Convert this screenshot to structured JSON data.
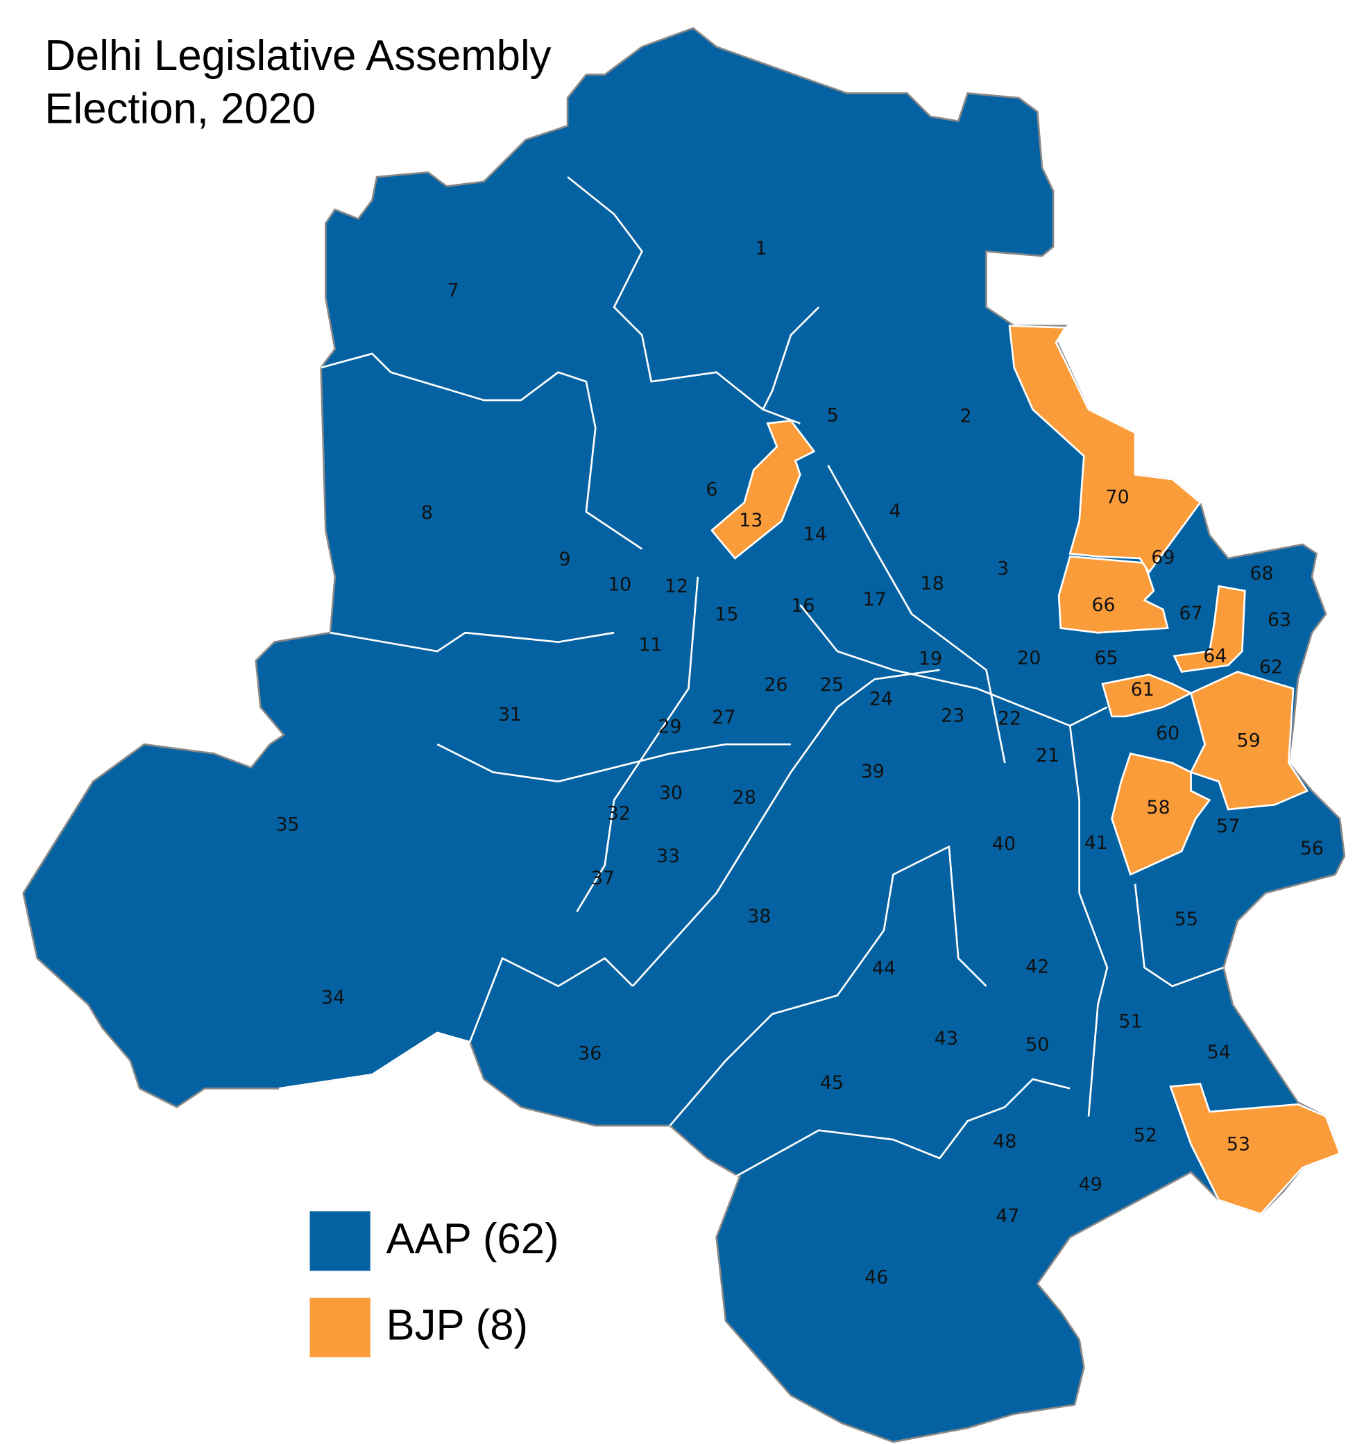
{
  "title": [
    "Delhi Legislative Assembly",
    "Election, 2020"
  ],
  "parties": [
    {
      "name": "AAP  (62)",
      "color": "#0462a2"
    },
    {
      "name": "BJP (8)",
      "color": "#fb9c3a"
    }
  ],
  "constituencies": [
    {
      "label": "1",
      "party": 0
    },
    {
      "label": "2",
      "party": 0
    },
    {
      "label": "3",
      "party": 0
    },
    {
      "label": "4",
      "party": 0
    },
    {
      "label": "5",
      "party": 0
    },
    {
      "label": "6",
      "party": 0
    },
    {
      "label": "7",
      "party": 0
    },
    {
      "label": "8",
      "party": 0
    },
    {
      "label": "9",
      "party": 0
    },
    {
      "label": "10",
      "party": 0
    },
    {
      "label": "11",
      "party": 0
    },
    {
      "label": "12",
      "party": 0
    },
    {
      "label": "13",
      "party": 1
    },
    {
      "label": "14",
      "party": 0
    },
    {
      "label": "15",
      "party": 0
    },
    {
      "label": "16",
      "party": 0
    },
    {
      "label": "17",
      "party": 0
    },
    {
      "label": "18",
      "party": 0
    },
    {
      "label": "19",
      "party": 0
    },
    {
      "label": "20",
      "party": 0
    },
    {
      "label": "21",
      "party": 0
    },
    {
      "label": "22",
      "party": 0
    },
    {
      "label": "23",
      "party": 0
    },
    {
      "label": "24",
      "party": 0
    },
    {
      "label": "25",
      "party": 0
    },
    {
      "label": "26",
      "party": 0
    },
    {
      "label": "27",
      "party": 0
    },
    {
      "label": "28",
      "party": 0
    },
    {
      "label": "29",
      "party": 0
    },
    {
      "label": "30",
      "party": 0
    },
    {
      "label": "31",
      "party": 0
    },
    {
      "label": "32",
      "party": 0
    },
    {
      "label": "33",
      "party": 0
    },
    {
      "label": "34",
      "party": 0
    },
    {
      "label": "35",
      "party": 0
    },
    {
      "label": "36",
      "party": 0
    },
    {
      "label": "37",
      "party": 0
    },
    {
      "label": "38",
      "party": 0
    },
    {
      "label": "39",
      "party": 0
    },
    {
      "label": "40",
      "party": 0
    },
    {
      "label": "41",
      "party": 0
    },
    {
      "label": "42",
      "party": 0
    },
    {
      "label": "43",
      "party": 0
    },
    {
      "label": "44",
      "party": 0
    },
    {
      "label": "45",
      "party": 0
    },
    {
      "label": "46",
      "party": 0
    },
    {
      "label": "47",
      "party": 0
    },
    {
      "label": "48",
      "party": 0
    },
    {
      "label": "49",
      "party": 0
    },
    {
      "label": "50",
      "party": 0
    },
    {
      "label": "51",
      "party": 0
    },
    {
      "label": "52",
      "party": 0
    },
    {
      "label": "53",
      "party": 1
    },
    {
      "label": "54",
      "party": 0
    },
    {
      "label": "55",
      "party": 0
    },
    {
      "label": "56",
      "party": 0
    },
    {
      "label": "57",
      "party": 0
    },
    {
      "label": "58",
      "party": 1
    },
    {
      "label": "59",
      "party": 1
    },
    {
      "label": "60",
      "party": 0
    },
    {
      "label": "61",
      "party": 1
    },
    {
      "label": "62",
      "party": 0
    },
    {
      "label": "63",
      "party": 0
    },
    {
      "label": "64",
      "party": 1
    },
    {
      "label": "65",
      "party": 0
    },
    {
      "label": "66",
      "party": 1
    },
    {
      "label": "67",
      "party": 0
    },
    {
      "label": "68",
      "party": 0
    },
    {
      "label": "69",
      "party": 0
    },
    {
      "label": "70",
      "party": 1
    }
  ]
}
